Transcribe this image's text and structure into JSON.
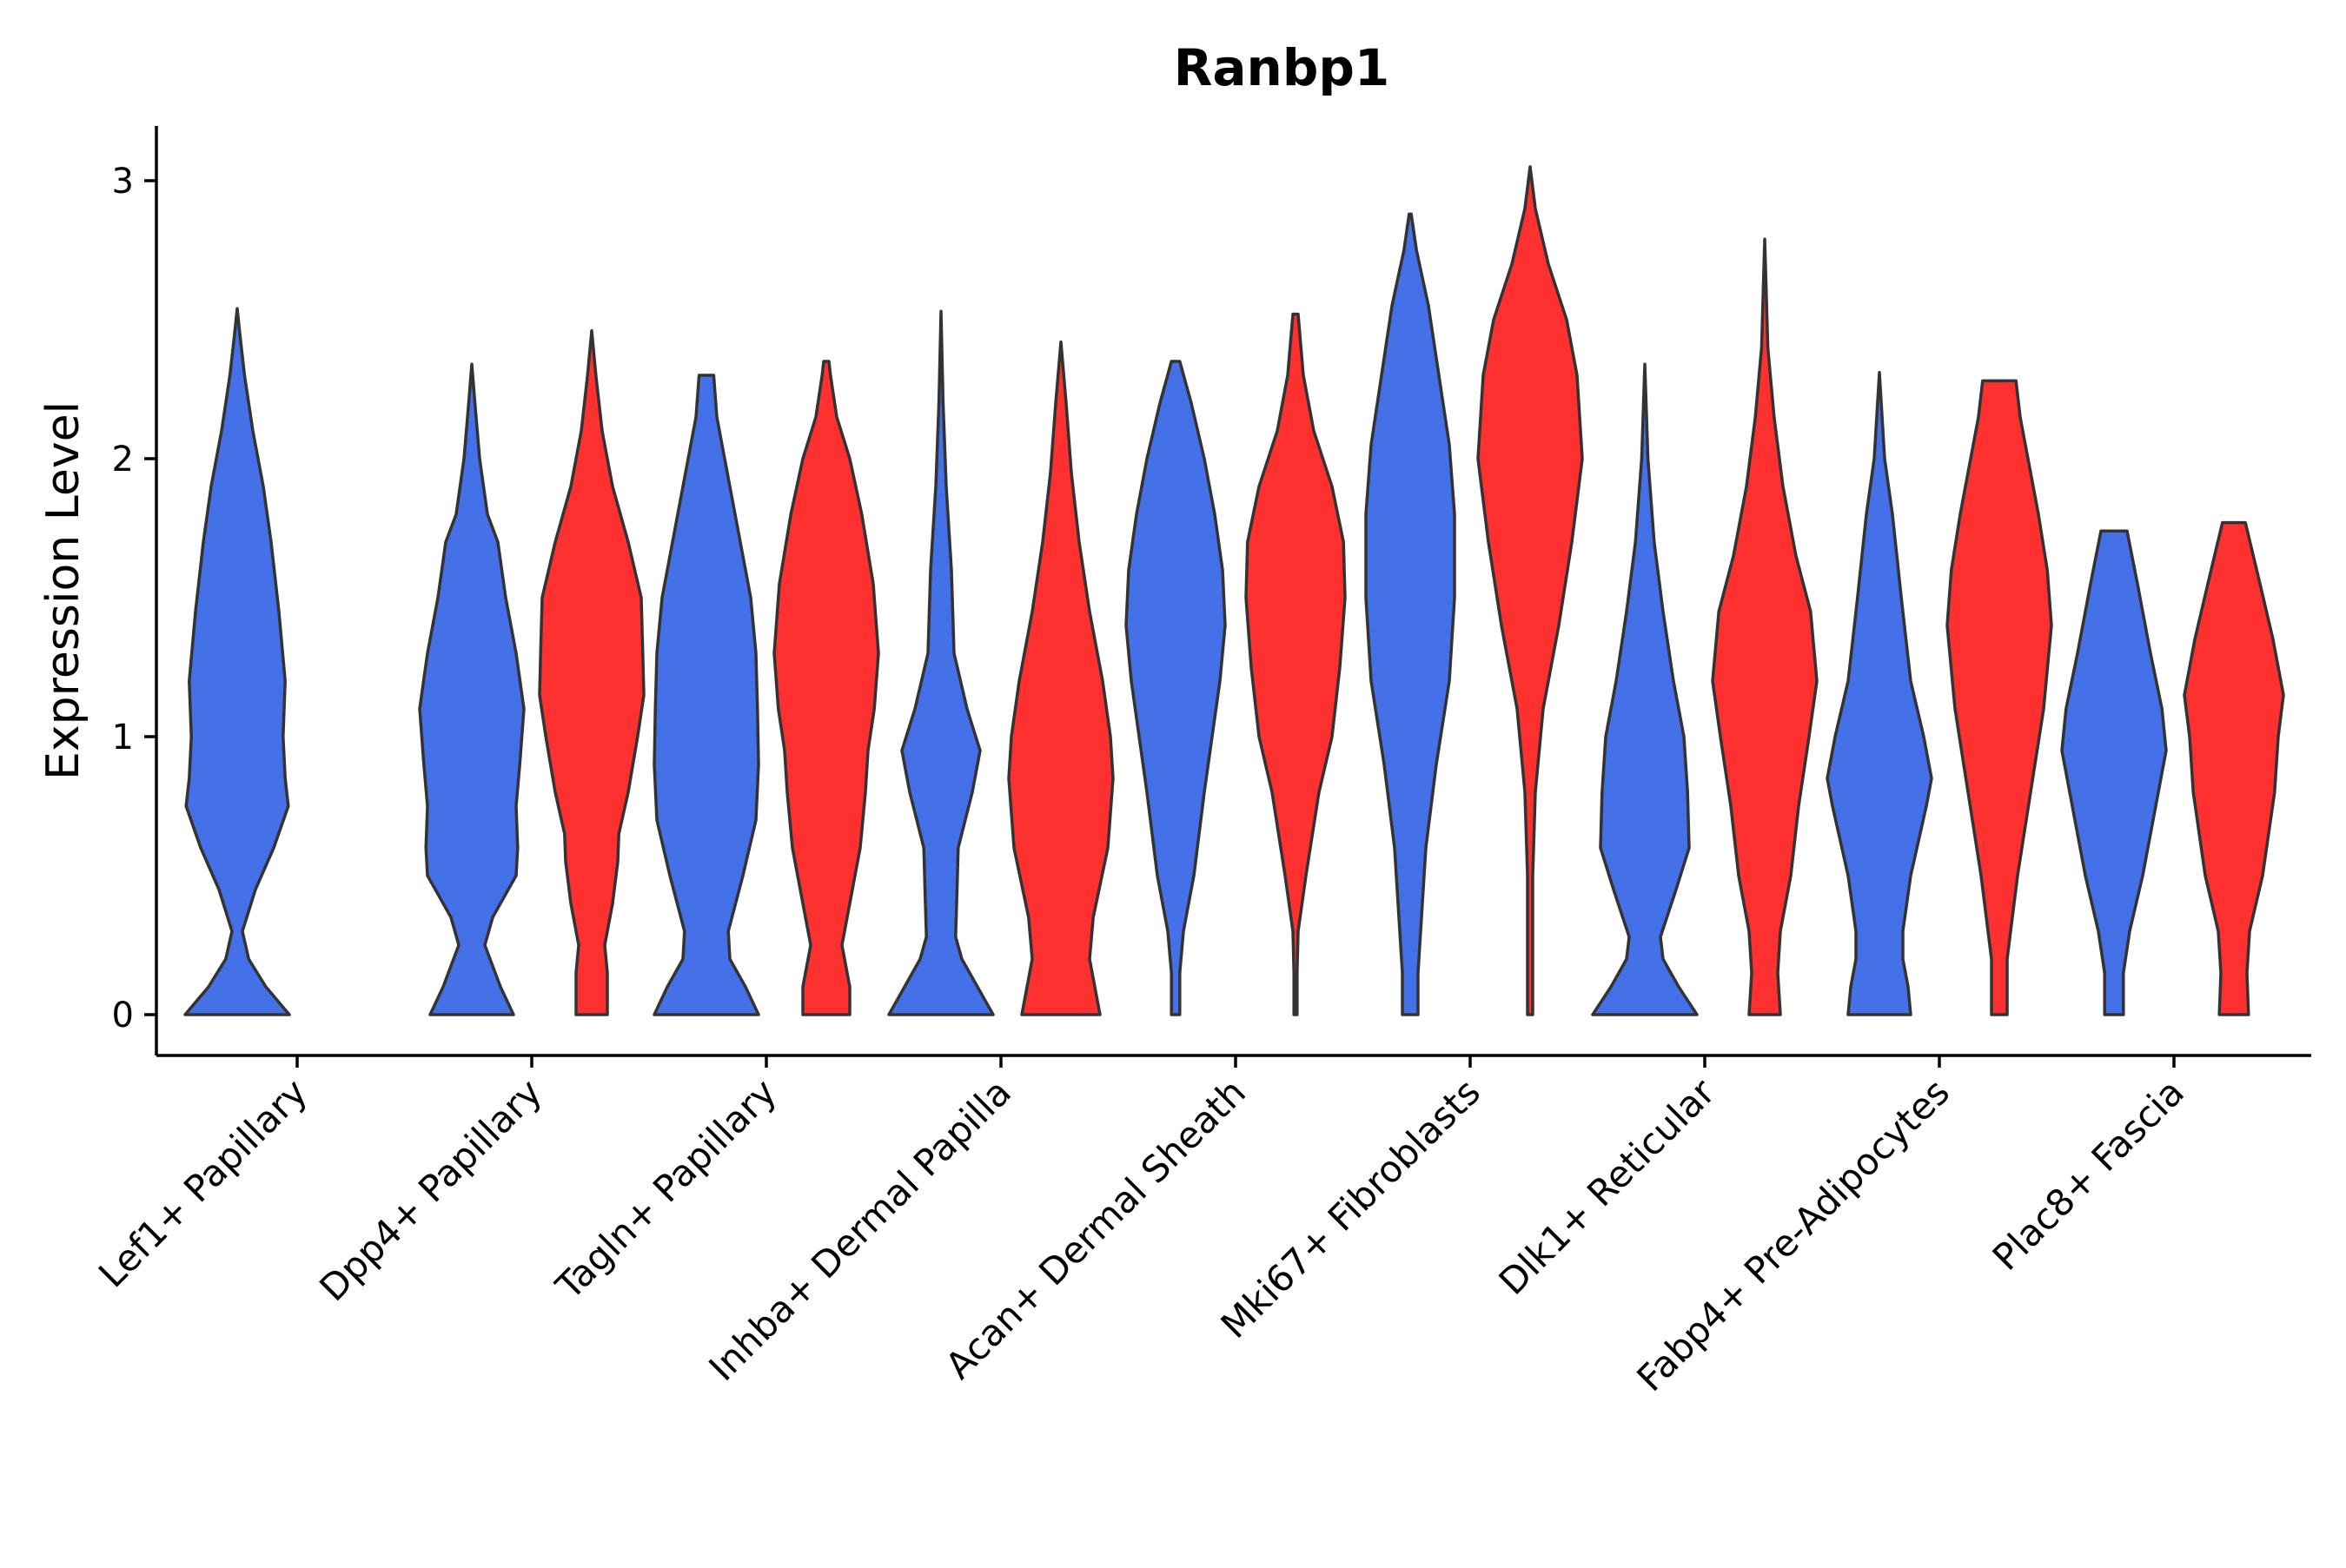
{
  "chart_data": {
    "type": "violin",
    "title": "Ranbp1",
    "xlabel": "",
    "ylabel": "Expression Level",
    "ylim": [
      -0.15,
      3.2
    ],
    "yticks": [
      0,
      1,
      2,
      3
    ],
    "grid": false,
    "legend": "none",
    "colors": {
      "group_a": "#4470E8",
      "group_b": "#FF3030"
    },
    "categories": [
      "Lef1+ Papillary",
      "Dpp4+ Papillary",
      "Tagln+ Papillary",
      "Inhba+ Dermal Papilla",
      "Acan+ Dermal Sheath",
      "Mki67+ Fibroblasts",
      "Dlk1+ Reticular",
      "Fabp4+ Pre-Adipocytes",
      "Plac8+ Fascia"
    ],
    "violins": [
      {
        "category": "Lef1+ Papillary",
        "group": "a",
        "max": 2.54,
        "profile": [
          [
            0,
            1.0
          ],
          [
            0.1,
            0.55
          ],
          [
            0.2,
            0.22
          ],
          [
            0.3,
            0.1
          ],
          [
            0.45,
            0.35
          ],
          [
            0.6,
            0.7
          ],
          [
            0.75,
            0.98
          ],
          [
            0.85,
            0.92
          ],
          [
            1.0,
            0.88
          ],
          [
            1.2,
            0.92
          ],
          [
            1.45,
            0.8
          ],
          [
            1.7,
            0.65
          ],
          [
            1.9,
            0.5
          ],
          [
            2.1,
            0.3
          ],
          [
            2.3,
            0.14
          ],
          [
            2.45,
            0.05
          ],
          [
            2.54,
            0
          ]
        ]
      },
      {
        "category": "Dpp4+ Papillary",
        "group": "a",
        "max": 2.34,
        "profile": [
          [
            0,
            0.8
          ],
          [
            0.1,
            0.55
          ],
          [
            0.25,
            0.25
          ],
          [
            0.35,
            0.4
          ],
          [
            0.5,
            0.85
          ],
          [
            0.6,
            0.88
          ],
          [
            0.75,
            0.85
          ],
          [
            0.9,
            0.92
          ],
          [
            1.1,
            1.0
          ],
          [
            1.3,
            0.85
          ],
          [
            1.5,
            0.65
          ],
          [
            1.7,
            0.5
          ],
          [
            1.8,
            0.3
          ],
          [
            2.0,
            0.15
          ],
          [
            2.2,
            0.06
          ],
          [
            2.34,
            0
          ]
        ]
      },
      {
        "category": "Dpp4+ Papillary",
        "group": "b",
        "max": 2.46,
        "profile": [
          [
            0,
            0.3
          ],
          [
            0.15,
            0.3
          ],
          [
            0.25,
            0.25
          ],
          [
            0.4,
            0.4
          ],
          [
            0.55,
            0.5
          ],
          [
            0.65,
            0.52
          ],
          [
            0.8,
            0.7
          ],
          [
            1.0,
            0.88
          ],
          [
            1.15,
            1.0
          ],
          [
            1.3,
            0.98
          ],
          [
            1.5,
            0.95
          ],
          [
            1.7,
            0.7
          ],
          [
            1.9,
            0.4
          ],
          [
            2.1,
            0.2
          ],
          [
            2.3,
            0.08
          ],
          [
            2.46,
            0
          ]
        ]
      },
      {
        "category": "Tagln+ Papillary",
        "group": "a",
        "max": 2.3,
        "profile": [
          [
            0,
            1.0
          ],
          [
            0.1,
            0.75
          ],
          [
            0.2,
            0.45
          ],
          [
            0.3,
            0.42
          ],
          [
            0.5,
            0.7
          ],
          [
            0.7,
            0.95
          ],
          [
            0.9,
            1.0
          ],
          [
            1.1,
            0.98
          ],
          [
            1.3,
            0.95
          ],
          [
            1.5,
            0.85
          ],
          [
            1.75,
            0.6
          ],
          [
            2.0,
            0.35
          ],
          [
            2.15,
            0.2
          ],
          [
            2.3,
            0.14
          ]
        ]
      },
      {
        "category": "Tagln+ Papillary",
        "group": "b",
        "max": 2.35,
        "profile": [
          [
            0,
            0.45
          ],
          [
            0.1,
            0.45
          ],
          [
            0.25,
            0.3
          ],
          [
            0.4,
            0.45
          ],
          [
            0.6,
            0.65
          ],
          [
            0.8,
            0.75
          ],
          [
            0.95,
            0.8
          ],
          [
            1.1,
            0.92
          ],
          [
            1.3,
            1.0
          ],
          [
            1.55,
            0.9
          ],
          [
            1.8,
            0.68
          ],
          [
            2.0,
            0.45
          ],
          [
            2.15,
            0.2
          ],
          [
            2.3,
            0.08
          ],
          [
            2.35,
            0.05
          ]
        ]
      },
      {
        "category": "Inhba+ Dermal Papilla",
        "group": "a",
        "max": 2.53,
        "profile": [
          [
            0,
            1.0
          ],
          [
            0.1,
            0.7
          ],
          [
            0.2,
            0.4
          ],
          [
            0.28,
            0.28
          ],
          [
            0.4,
            0.3
          ],
          [
            0.6,
            0.33
          ],
          [
            0.8,
            0.6
          ],
          [
            0.95,
            0.75
          ],
          [
            1.1,
            0.5
          ],
          [
            1.3,
            0.25
          ],
          [
            1.6,
            0.2
          ],
          [
            1.9,
            0.1
          ],
          [
            2.2,
            0.04
          ],
          [
            2.53,
            0
          ]
        ]
      },
      {
        "category": "Inhba+ Dermal Papilla",
        "group": "b",
        "max": 2.42,
        "profile": [
          [
            0,
            0.75
          ],
          [
            0.1,
            0.65
          ],
          [
            0.2,
            0.55
          ],
          [
            0.35,
            0.62
          ],
          [
            0.6,
            0.9
          ],
          [
            0.85,
            1.0
          ],
          [
            1.0,
            0.95
          ],
          [
            1.2,
            0.8
          ],
          [
            1.45,
            0.55
          ],
          [
            1.7,
            0.35
          ],
          [
            1.95,
            0.2
          ],
          [
            2.2,
            0.1
          ],
          [
            2.42,
            0
          ]
        ]
      },
      {
        "category": "Acan+ Dermal Sheath",
        "group": "a",
        "max": 2.35,
        "profile": [
          [
            0,
            0.08
          ],
          [
            0.15,
            0.08
          ],
          [
            0.3,
            0.15
          ],
          [
            0.5,
            0.35
          ],
          [
            0.8,
            0.55
          ],
          [
            1.0,
            0.7
          ],
          [
            1.2,
            0.85
          ],
          [
            1.4,
            0.95
          ],
          [
            1.6,
            0.9
          ],
          [
            1.8,
            0.75
          ],
          [
            2.0,
            0.55
          ],
          [
            2.2,
            0.3
          ],
          [
            2.35,
            0.08
          ]
        ]
      },
      {
        "category": "Acan+ Dermal Sheath",
        "group": "b",
        "max": 2.52,
        "profile": [
          [
            0,
            0.03
          ],
          [
            0.15,
            0.03
          ],
          [
            0.3,
            0.05
          ],
          [
            0.5,
            0.2
          ],
          [
            0.8,
            0.45
          ],
          [
            1.0,
            0.7
          ],
          [
            1.25,
            0.85
          ],
          [
            1.5,
            0.95
          ],
          [
            1.7,
            0.92
          ],
          [
            1.9,
            0.7
          ],
          [
            2.1,
            0.35
          ],
          [
            2.3,
            0.15
          ],
          [
            2.52,
            0.05
          ]
        ]
      },
      {
        "category": "Mki67+ Fibroblasts",
        "group": "a",
        "max": 2.88,
        "profile": [
          [
            0,
            0.15
          ],
          [
            0.15,
            0.15
          ],
          [
            0.3,
            0.2
          ],
          [
            0.6,
            0.3
          ],
          [
            0.9,
            0.5
          ],
          [
            1.2,
            0.75
          ],
          [
            1.5,
            0.85
          ],
          [
            1.8,
            0.85
          ],
          [
            2.05,
            0.75
          ],
          [
            2.3,
            0.55
          ],
          [
            2.55,
            0.35
          ],
          [
            2.75,
            0.12
          ],
          [
            2.88,
            0.02
          ]
        ]
      },
      {
        "category": "Mki67+ Fibroblasts",
        "group": "b",
        "max": 3.05,
        "profile": [
          [
            0,
            0.05
          ],
          [
            0.2,
            0.05
          ],
          [
            0.5,
            0.05
          ],
          [
            0.8,
            0.1
          ],
          [
            1.1,
            0.25
          ],
          [
            1.4,
            0.55
          ],
          [
            1.7,
            0.8
          ],
          [
            2.0,
            1.0
          ],
          [
            2.3,
            0.9
          ],
          [
            2.5,
            0.7
          ],
          [
            2.7,
            0.35
          ],
          [
            2.9,
            0.1
          ],
          [
            3.05,
            0
          ]
        ]
      },
      {
        "category": "Dlk1+ Reticular",
        "group": "a",
        "max": 2.34,
        "profile": [
          [
            0,
            1.0
          ],
          [
            0.1,
            0.65
          ],
          [
            0.2,
            0.35
          ],
          [
            0.28,
            0.3
          ],
          [
            0.45,
            0.6
          ],
          [
            0.6,
            0.85
          ],
          [
            0.8,
            0.82
          ],
          [
            1.0,
            0.75
          ],
          [
            1.2,
            0.55
          ],
          [
            1.45,
            0.35
          ],
          [
            1.7,
            0.18
          ],
          [
            2.0,
            0.06
          ],
          [
            2.34,
            0
          ]
        ]
      },
      {
        "category": "Dlk1+ Reticular",
        "group": "b",
        "max": 2.79,
        "profile": [
          [
            0,
            0.3
          ],
          [
            0.15,
            0.25
          ],
          [
            0.3,
            0.3
          ],
          [
            0.5,
            0.5
          ],
          [
            0.75,
            0.65
          ],
          [
            1.0,
            0.85
          ],
          [
            1.2,
            1.0
          ],
          [
            1.45,
            0.88
          ],
          [
            1.65,
            0.6
          ],
          [
            1.9,
            0.35
          ],
          [
            2.15,
            0.18
          ],
          [
            2.4,
            0.06
          ],
          [
            2.79,
            0
          ]
        ]
      },
      {
        "category": "Fabp4+ Pre-Adipocytes",
        "group": "a",
        "max": 2.31,
        "profile": [
          [
            0,
            0.6
          ],
          [
            0.1,
            0.55
          ],
          [
            0.2,
            0.45
          ],
          [
            0.3,
            0.45
          ],
          [
            0.5,
            0.6
          ],
          [
            0.75,
            0.9
          ],
          [
            0.85,
            1.0
          ],
          [
            1.0,
            0.85
          ],
          [
            1.2,
            0.6
          ],
          [
            1.5,
            0.42
          ],
          [
            1.8,
            0.25
          ],
          [
            2.0,
            0.1
          ],
          [
            2.31,
            0
          ]
        ]
      },
      {
        "category": "Fabp4+ Pre-Adipocytes",
        "group": "b",
        "max": 2.28,
        "profile": [
          [
            0,
            0.15
          ],
          [
            0.2,
            0.15
          ],
          [
            0.5,
            0.35
          ],
          [
            0.8,
            0.6
          ],
          [
            1.1,
            0.85
          ],
          [
            1.4,
            1.0
          ],
          [
            1.6,
            0.92
          ],
          [
            1.8,
            0.75
          ],
          [
            2.0,
            0.55
          ],
          [
            2.15,
            0.4
          ],
          [
            2.28,
            0.32
          ]
        ]
      },
      {
        "category": "Plac8+ Fascia",
        "group": "a",
        "max": 1.74,
        "profile": [
          [
            0,
            0.18
          ],
          [
            0.15,
            0.18
          ],
          [
            0.3,
            0.3
          ],
          [
            0.5,
            0.55
          ],
          [
            0.75,
            0.8
          ],
          [
            0.95,
            1.0
          ],
          [
            1.1,
            0.92
          ],
          [
            1.3,
            0.7
          ],
          [
            1.55,
            0.45
          ],
          [
            1.74,
            0.25
          ]
        ]
      },
      {
        "category": "Plac8+ Fascia",
        "group": "b",
        "max": 1.77,
        "profile": [
          [
            0,
            0.28
          ],
          [
            0.15,
            0.25
          ],
          [
            0.3,
            0.3
          ],
          [
            0.5,
            0.55
          ],
          [
            0.8,
            0.78
          ],
          [
            1.0,
            0.85
          ],
          [
            1.15,
            0.95
          ],
          [
            1.35,
            0.75
          ],
          [
            1.55,
            0.5
          ],
          [
            1.77,
            0.22
          ]
        ]
      }
    ]
  }
}
